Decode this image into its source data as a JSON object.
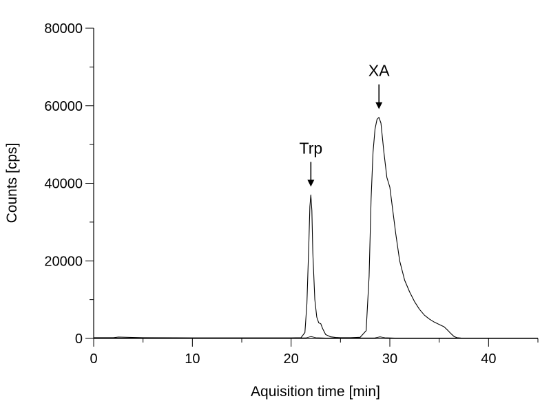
{
  "chart_data": {
    "type": "line",
    "title": "",
    "xlabel": "Aquisition time [min]",
    "ylabel": "Counts [cps]",
    "xlim": [
      0,
      45
    ],
    "ylim": [
      0,
      80000
    ],
    "x_ticks": [
      0,
      10,
      20,
      30,
      40
    ],
    "x_tick_labels": [
      "0",
      "10",
      "20",
      "30",
      "40"
    ],
    "y_ticks": [
      0,
      20000,
      40000,
      60000,
      80000
    ],
    "y_tick_labels": [
      "0",
      "20000",
      "40000",
      "60000",
      "80000"
    ],
    "grid": false,
    "line_color": "#000000",
    "annotations": [
      {
        "text": "Trp",
        "x": 22.0,
        "y": 37000
      },
      {
        "text": "XA",
        "x": 28.9,
        "y": 57000
      }
    ],
    "series": [
      {
        "x": [
          0,
          2,
          2.5,
          5,
          10,
          15,
          20,
          21.0,
          21.4,
          21.6,
          21.8,
          21.9,
          22.0,
          22.1,
          22.2,
          22.4,
          22.6,
          22.8,
          23.0,
          23.2,
          23.5,
          24.0,
          24.5,
          25.0,
          26,
          27.0,
          27.6,
          27.9,
          28.1,
          28.3,
          28.5,
          28.7,
          28.9,
          29.1,
          29.4,
          29.7,
          30.0,
          30.3,
          30.6,
          31.0,
          31.5,
          32.0,
          32.5,
          33.0,
          33.5,
          34.0,
          34.5,
          35.0,
          35.5,
          35.9,
          36.2,
          36.5,
          36.8,
          37.2,
          38,
          40,
          45
        ],
        "y": [
          200,
          200,
          350,
          200,
          150,
          150,
          150,
          200,
          1500,
          9000,
          25000,
          34000,
          37000,
          33000,
          22000,
          10000,
          5500,
          4000,
          3800,
          2500,
          1000,
          400,
          250,
          200,
          200,
          300,
          2000,
          16000,
          36000,
          48000,
          54000,
          56500,
          57000,
          55500,
          48000,
          41500,
          39000,
          33000,
          27000,
          20000,
          15000,
          12000,
          9500,
          7500,
          6000,
          5000,
          4200,
          3600,
          3000,
          2000,
          1200,
          500,
          200,
          100,
          80,
          80,
          80
        ]
      },
      {
        "x": [
          0,
          10,
          20,
          21.5,
          22.0,
          22.5,
          23.5,
          25,
          28.5,
          29.0,
          29.5,
          30.5,
          35,
          40,
          45
        ],
        "y": [
          100,
          100,
          100,
          150,
          500,
          200,
          100,
          100,
          150,
          400,
          200,
          100,
          100,
          100,
          100
        ]
      }
    ]
  }
}
